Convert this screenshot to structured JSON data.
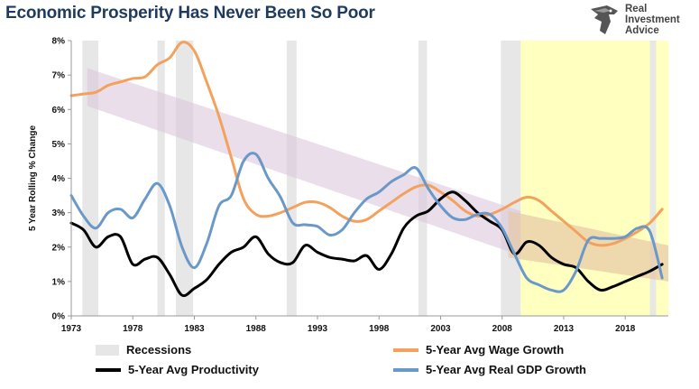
{
  "title": "Economic Prosperity Has Never Been So Poor",
  "logo": {
    "line1": "Real",
    "line2": "Investment",
    "line3": "Advice",
    "icon": "eagle-head-icon"
  },
  "colors": {
    "productivity": "#000000",
    "wage": "#f4a15d",
    "gdp": "#6a98c8",
    "recession": "#e6e6e6",
    "highlight": "#ffffc0",
    "trend_band": "#dcc8dc",
    "wedge": "#e7c9a6",
    "title": "#1f3a5f"
  },
  "legend": {
    "recessions": "Recessions",
    "wage": "5-Year Avg Wage Growth",
    "productivity": "5-Year Avg Productivity",
    "gdp": "5-Year Avg Real GDP Growth"
  },
  "chart_data": {
    "type": "line",
    "ylabel": "5 Year Rolling % Change",
    "xlabel": "",
    "xlim": [
      1973,
      2021.5
    ],
    "ylim": [
      0,
      8
    ],
    "x_ticks": [
      1973,
      1978,
      1983,
      1988,
      1993,
      1998,
      2003,
      2008,
      2013,
      2018
    ],
    "y_ticks": [
      0,
      1,
      2,
      3,
      4,
      5,
      6,
      7,
      8
    ],
    "y_tick_labels": [
      "0%",
      "1%",
      "2%",
      "3%",
      "4%",
      "5%",
      "6%",
      "7%",
      "8%"
    ],
    "grid": false,
    "legend_position": "bottom",
    "recessions": [
      [
        1973.9,
        1975.2
      ],
      [
        1980.0,
        1980.6
      ],
      [
        1981.5,
        1982.9
      ],
      [
        1990.5,
        1991.3
      ],
      [
        2001.2,
        2001.9
      ],
      [
        2007.9,
        2009.5
      ],
      [
        2020.0,
        2020.5
      ]
    ],
    "highlight_range": [
      2009.5,
      2021.5
    ],
    "series": [
      {
        "name": "5-Year Avg Wage Growth",
        "x": [
          1973,
          1974,
          1975,
          1976,
          1977,
          1978,
          1979,
          1980,
          1981,
          1982,
          1983,
          1984,
          1985,
          1986,
          1987,
          1988,
          1989,
          1990,
          1991,
          1992,
          1993,
          1994,
          1995,
          1996,
          1997,
          1998,
          1999,
          2000,
          2001,
          2002,
          2003,
          2004,
          2005,
          2006,
          2007,
          2008,
          2009,
          2010,
          2011,
          2012,
          2013,
          2014,
          2015,
          2016,
          2017,
          2018,
          2019,
          2020,
          2021
        ],
        "y": [
          6.4,
          6.45,
          6.5,
          6.7,
          6.8,
          6.9,
          6.95,
          7.3,
          7.5,
          7.95,
          7.7,
          6.8,
          5.8,
          4.6,
          3.4,
          2.95,
          2.9,
          3.0,
          3.15,
          3.3,
          3.3,
          3.15,
          2.9,
          2.75,
          2.8,
          3.05,
          3.3,
          3.55,
          3.75,
          3.8,
          3.6,
          3.35,
          3.05,
          2.9,
          2.95,
          3.1,
          3.3,
          3.45,
          3.35,
          3.05,
          2.75,
          2.45,
          2.15,
          2.05,
          2.1,
          2.25,
          2.45,
          2.7,
          3.1
        ]
      },
      {
        "name": "5-Year Avg Productivity",
        "x": [
          1973,
          1974,
          1975,
          1976,
          1977,
          1978,
          1979,
          1980,
          1981,
          1982,
          1983,
          1984,
          1985,
          1986,
          1987,
          1988,
          1989,
          1990,
          1991,
          1992,
          1993,
          1994,
          1995,
          1996,
          1997,
          1998,
          1999,
          2000,
          2001,
          2002,
          2003,
          2004,
          2005,
          2006,
          2007,
          2008,
          2009,
          2010,
          2011,
          2012,
          2013,
          2014,
          2015,
          2016,
          2017,
          2018,
          2019,
          2020,
          2021
        ],
        "y": [
          2.7,
          2.5,
          2.0,
          2.3,
          2.3,
          1.5,
          1.65,
          1.7,
          1.2,
          0.6,
          0.8,
          1.05,
          1.5,
          1.85,
          2.0,
          2.3,
          1.8,
          1.55,
          1.55,
          2.05,
          1.85,
          1.7,
          1.65,
          1.6,
          1.75,
          1.35,
          1.8,
          2.55,
          2.9,
          3.05,
          3.4,
          3.6,
          3.35,
          3.0,
          2.75,
          2.5,
          1.8,
          2.15,
          2.05,
          1.7,
          1.5,
          1.4,
          1.0,
          0.75,
          0.85,
          1.0,
          1.15,
          1.3,
          1.5
        ]
      },
      {
        "name": "5-Year Avg Real GDP Growth",
        "x": [
          1973,
          1974,
          1975,
          1976,
          1977,
          1978,
          1979,
          1980,
          1981,
          1982,
          1983,
          1984,
          1985,
          1986,
          1987,
          1988,
          1989,
          1990,
          1991,
          1992,
          1993,
          1994,
          1995,
          1996,
          1997,
          1998,
          1999,
          2000,
          2001,
          2002,
          2003,
          2004,
          2005,
          2006,
          2007,
          2008,
          2009,
          2010,
          2011,
          2012,
          2013,
          2014,
          2015,
          2016,
          2017,
          2018,
          2019,
          2020,
          2021
        ],
        "y": [
          3.5,
          2.9,
          2.55,
          3.0,
          3.1,
          2.85,
          3.4,
          3.85,
          3.2,
          2.0,
          1.4,
          2.1,
          3.2,
          3.5,
          4.5,
          4.7,
          4.0,
          3.45,
          2.7,
          2.65,
          2.6,
          2.35,
          2.5,
          3.0,
          3.4,
          3.6,
          3.9,
          4.1,
          4.3,
          3.7,
          3.2,
          2.85,
          2.8,
          2.95,
          2.95,
          2.55,
          1.8,
          1.1,
          0.9,
          0.75,
          0.75,
          1.3,
          2.2,
          2.25,
          2.25,
          2.3,
          2.55,
          2.45,
          1.1
        ]
      }
    ],
    "trend_band": {
      "x": [
        1974.3,
        2009.5
      ],
      "upper": [
        7.2,
        3.05
      ],
      "lower": [
        6.1,
        1.75
      ]
    },
    "wedge": {
      "x": [
        2008.5,
        2021.5
      ],
      "upper": [
        3.05,
        2.05
      ],
      "lower": [
        1.7,
        1.0
      ]
    }
  }
}
